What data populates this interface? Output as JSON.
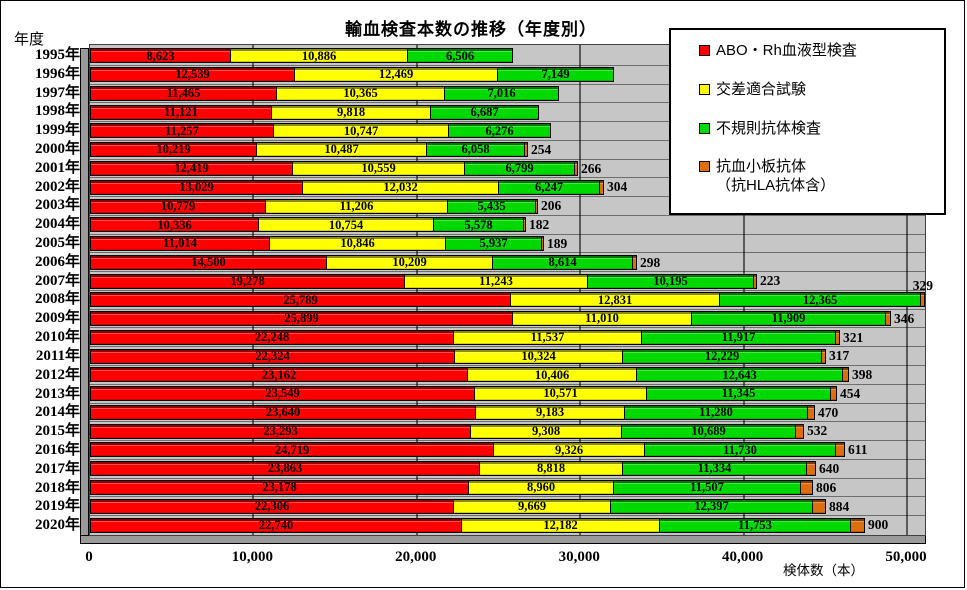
{
  "title": "輸血検査本数の推移（年度別）",
  "y_axis_title": "年度",
  "x_axis_title": "検体数（本）",
  "legend": {
    "items": [
      {
        "label": "ABO・Rh血液型検査",
        "color": "#ff0000"
      },
      {
        "label": "交差適合試験",
        "color": "#ffff00"
      },
      {
        "label": "不規則抗体検査",
        "color": "#00d900"
      },
      {
        "label": "抗血小板抗体\n（抗HLA抗体含）",
        "color": "#dd6e0e"
      }
    ]
  },
  "chart_data": {
    "type": "bar",
    "orientation": "horizontal-stacked",
    "title": "輸血検査本数の推移（年度別）",
    "xlabel": "検体数（本）",
    "ylabel": "年度",
    "xlim": [
      0,
      50000
    ],
    "grid": true,
    "legend_position": "top-right",
    "x_ticks": [
      {
        "label": "0",
        "value": 0
      },
      {
        "label": "10,000",
        "value": 10000
      },
      {
        "label": "20,000",
        "value": 20000
      },
      {
        "label": "30,000",
        "value": 30000
      },
      {
        "label": "40,000",
        "value": 40000
      },
      {
        "label": "50,000",
        "value": 50000
      }
    ],
    "categories": [
      "1995年",
      "1996年",
      "1997年",
      "1998年",
      "1999年",
      "2000年",
      "2001年",
      "2002年",
      "2003年",
      "2004年",
      "2005年",
      "2006年",
      "2007年",
      "2008年",
      "2009年",
      "2010年",
      "2011年",
      "2012年",
      "2013年",
      "2014年",
      "2015年",
      "2016年",
      "2017年",
      "2018年",
      "2019年",
      "2020年"
    ],
    "series": [
      {
        "name": "ABO・Rh血液型検査",
        "color": "#ff0000",
        "values": [
          8623,
          12539,
          11465,
          11121,
          11257,
          10219,
          12419,
          13029,
          10779,
          10336,
          11014,
          14500,
          19278,
          25789,
          25899,
          22248,
          22324,
          23162,
          23549,
          23640,
          23293,
          24719,
          23863,
          23178,
          22306,
          22740
        ]
      },
      {
        "name": "交差適合試験",
        "color": "#ffff00",
        "values": [
          10886,
          12469,
          10365,
          9818,
          10747,
          10487,
          10559,
          12032,
          11206,
          10754,
          10846,
          10209,
          11243,
          12831,
          11010,
          11537,
          10324,
          10406,
          10571,
          9183,
          9308,
          9326,
          8818,
          8960,
          9669,
          12182
        ]
      },
      {
        "name": "不規則抗体検査",
        "color": "#00d900",
        "values": [
          6506,
          7149,
          7016,
          6687,
          6276,
          6058,
          6799,
          6247,
          5435,
          5578,
          5937,
          8614,
          10195,
          12365,
          11909,
          11917,
          12229,
          12643,
          11345,
          11280,
          10689,
          11730,
          11334,
          11507,
          12397,
          11753
        ]
      },
      {
        "name": "抗血小板抗体（抗HLA抗体含）",
        "color": "#dd6e0e",
        "label_outside": true,
        "values": [
          null,
          null,
          null,
          null,
          null,
          254,
          266,
          304,
          206,
          182,
          189,
          298,
          223,
          329,
          346,
          321,
          317,
          398,
          454,
          470,
          532,
          611,
          640,
          806,
          884,
          900
        ]
      }
    ],
    "orange_label_above_rows": [
      13
    ]
  }
}
